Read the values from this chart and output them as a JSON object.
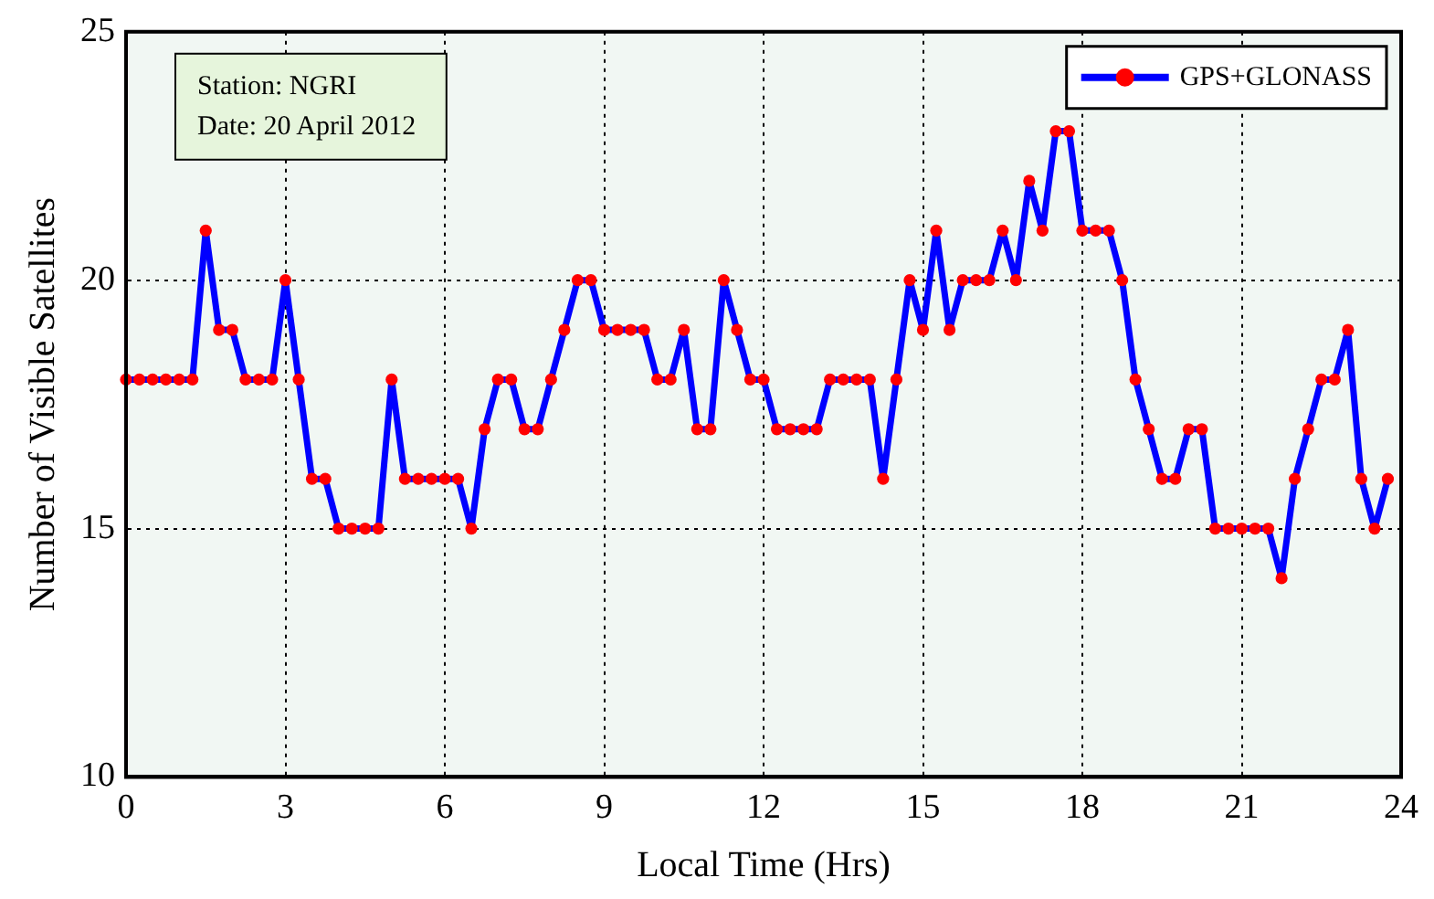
{
  "chart_data": {
    "type": "line",
    "xlabel": "Local Time (Hrs)",
    "ylabel": "Number of Visible Satellites",
    "annotations": [
      "Station: NGRI",
      "Date: 20 April 2012"
    ],
    "x": [
      0,
      0.25,
      0.5,
      0.75,
      1,
      1.25,
      1.5,
      1.75,
      2,
      2.25,
      2.5,
      2.75,
      3,
      3.25,
      3.5,
      3.75,
      4,
      4.25,
      4.5,
      4.75,
      5,
      5.25,
      5.5,
      5.75,
      6,
      6.25,
      6.5,
      6.75,
      7,
      7.25,
      7.5,
      7.75,
      8,
      8.25,
      8.5,
      8.75,
      9,
      9.25,
      9.5,
      9.75,
      10,
      10.25,
      10.5,
      10.75,
      11,
      11.25,
      11.5,
      11.75,
      12,
      12.25,
      12.5,
      12.75,
      13,
      13.25,
      13.5,
      13.75,
      14,
      14.25,
      14.5,
      14.75,
      15,
      15.25,
      15.5,
      15.75,
      16,
      16.25,
      16.5,
      16.75,
      17,
      17.25,
      17.5,
      17.75,
      18,
      18.25,
      18.5,
      18.75,
      19,
      19.25,
      19.5,
      19.75,
      20,
      20.25,
      20.5,
      20.75,
      21,
      21.25,
      21.5,
      21.75,
      22,
      22.25,
      22.5,
      22.75,
      23,
      23.25,
      23.5,
      23.75
    ],
    "series": [
      {
        "name": "GPS+GLONASS",
        "color": "#0000ff",
        "colors": [
          "#ff0000",
          "#ff0000",
          "#ff0000",
          "#ff0000",
          "#ff0000",
          "#ff0000",
          "#ff0000",
          "#ff0000",
          "#ff0000",
          "#ff0000",
          "#ff0000",
          "#ff0000",
          "#ff0000",
          "#ff0000",
          "#ff0000",
          "#ff0000",
          "#ff0000",
          "#ff0000",
          "#ff0000",
          "#ff0000",
          "#ff0000",
          "#ff0000",
          "#ff0000",
          "#ff0000",
          "#ff0000",
          "#ff0000",
          "#ff0000",
          "#ff0000",
          "#ff0000",
          "#ff0000",
          "#ff0000",
          "#ff0000",
          "#ff0000",
          "#ff0000",
          "#ff0000",
          "#ff0000",
          "#ff0000",
          "#ff0000",
          "#ff0000",
          "#ff0000",
          "#ff0000",
          "#ff0000",
          "#ff0000",
          "#ff0000",
          "#ff0000",
          "#ff0000",
          "#ff0000",
          "#ff0000",
          "#ff0000",
          "#ff0000",
          "#ff0000",
          "#ff0000",
          "#ff0000",
          "#ff0000",
          "#ff0000",
          "#ff0000",
          "#ff0000",
          "#ff0000",
          "#ff0000",
          "#ff0000",
          "#ff0000",
          "#ff0000",
          "#ff0000",
          "#ff0000",
          "#ff0000",
          "#ff0000",
          "#ff0000",
          "#ff0000",
          "#ff0000",
          "#ff0000",
          "#ff0000",
          "#ff0000",
          "#ff0000",
          "#ff0000",
          "#ff0000",
          "#ff0000",
          "#ff0000",
          "#ff0000",
          "#ff0000",
          "#ff0000",
          "#ff0000",
          "#ff0000",
          "#ff0000",
          "#ff0000",
          "#ff0000",
          "#ff0000",
          "#ff0000",
          "#ff0000",
          "#ff0000",
          "#ff0000",
          "#ff0000",
          "#ff0000",
          "#ff0000",
          "#ff0000",
          "#ff0000",
          "#ff0000"
        ],
        "values": [
          18,
          18,
          18,
          18,
          18,
          18,
          21,
          19,
          19,
          18,
          18,
          18,
          20,
          18,
          16,
          16,
          15,
          15,
          15,
          15,
          18,
          16,
          16,
          16,
          16,
          16,
          15,
          17,
          18,
          18,
          17,
          17,
          18,
          19,
          20,
          20,
          19,
          19,
          19,
          19,
          18,
          18,
          19,
          17,
          17,
          20,
          19,
          18,
          18,
          17,
          17,
          17,
          17,
          18,
          18,
          18,
          18,
          16,
          18,
          20,
          19,
          21,
          19,
          20,
          20,
          20,
          21,
          20,
          22,
          21,
          23,
          23,
          21,
          21,
          21,
          20,
          18,
          17,
          16,
          16,
          17,
          17,
          15,
          15,
          15,
          15,
          15,
          14,
          16,
          17,
          18,
          18,
          19,
          16,
          15,
          16
        ]
      }
    ],
    "xlim": [
      0,
      24
    ],
    "xticks": [
      0,
      3,
      6,
      9,
      12,
      15,
      18,
      21,
      24
    ],
    "ylim": [
      10,
      25
    ],
    "yticks": [
      10,
      15,
      20,
      25
    ],
    "grid": true,
    "legend": "top right",
    "marker": "circle",
    "line_style": "solid"
  }
}
